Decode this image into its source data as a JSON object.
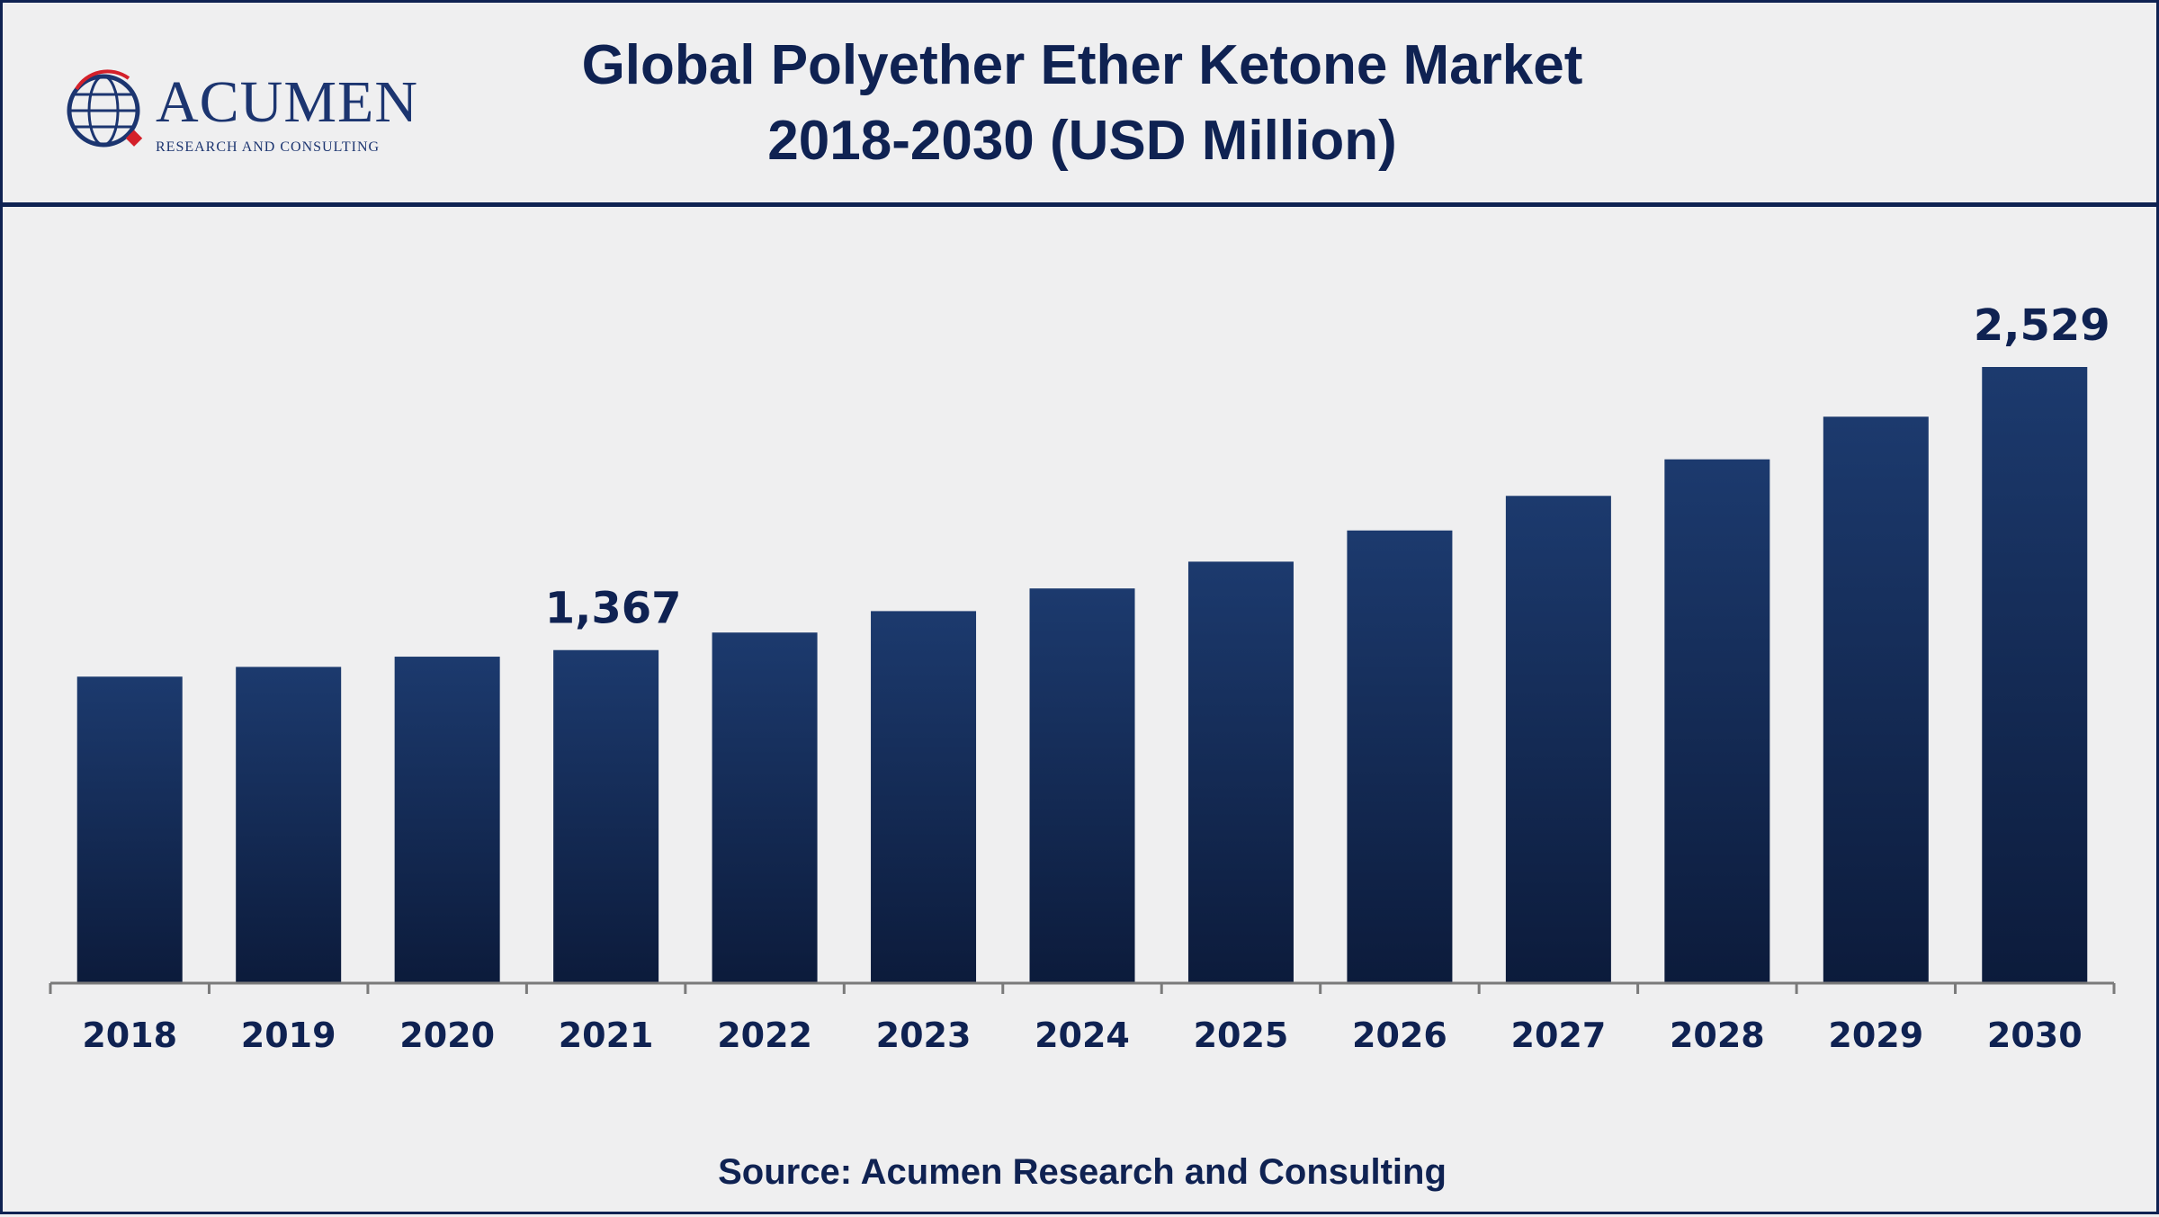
{
  "title": {
    "line1": "Global Polyether Ether Ketone Market",
    "line2": "2018-2030 (USD Million)"
  },
  "logo": {
    "name": "ACUMEN",
    "tagline": "RESEARCH AND CONSULTING"
  },
  "source": "Source: Acumen Research and Consulting",
  "colors": {
    "bar_top": "#1c3a6e",
    "bar_bottom": "#0c1b3b",
    "text": "#0f2252",
    "axis": "#7a7a7a"
  },
  "chart_data": {
    "type": "bar",
    "categories": [
      "2018",
      "2019",
      "2020",
      "2021",
      "2022",
      "2023",
      "2024",
      "2025",
      "2026",
      "2027",
      "2028",
      "2029",
      "2030"
    ],
    "values": [
      1258,
      1298,
      1340,
      1367,
      1439,
      1527,
      1620,
      1730,
      1858,
      2000,
      2150,
      2325,
      2529
    ],
    "data_labels": [
      {
        "index": 3,
        "text": "1,367"
      },
      {
        "index": 12,
        "text": "2,529"
      }
    ],
    "title": "Global Polyether Ether Ketone Market 2018-2030 (USD Million)",
    "xlabel": "",
    "ylabel": "",
    "ylim": [
      0,
      2800
    ],
    "grid": false,
    "legend": "none"
  }
}
